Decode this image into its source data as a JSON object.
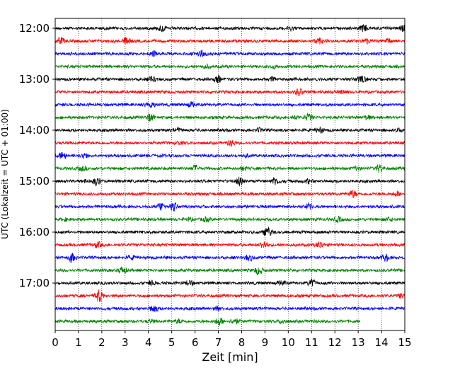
{
  "chart_data": {
    "type": "line",
    "subtype": "seismogram-helicorder",
    "xlabel": "Zeit  [min]",
    "ylabel": "UTC (Lokalzeit = UTC + 01:00)",
    "xlim": [
      0,
      15
    ],
    "x_ticks": [
      "0",
      "1",
      "2",
      "3",
      "4",
      "5",
      "6",
      "7",
      "8",
      "9",
      "10",
      "11",
      "12",
      "13",
      "14",
      "15"
    ],
    "y_tick_labels": [
      "12:00",
      "13:00",
      "14:00",
      "15:00",
      "16:00",
      "17:00"
    ],
    "grid": "vertical-dotted",
    "trace_minutes": 15,
    "trace_colors": [
      "#000000",
      "#ff0000",
      "#0000ff",
      "#008000"
    ],
    "traces": [
      {
        "start": "12:00",
        "end_min": 15
      },
      {
        "start": "12:15",
        "end_min": 15
      },
      {
        "start": "12:30",
        "end_min": 15
      },
      {
        "start": "12:45",
        "end_min": 15
      },
      {
        "start": "13:00",
        "end_min": 15
      },
      {
        "start": "13:15",
        "end_min": 15
      },
      {
        "start": "13:30",
        "end_min": 15
      },
      {
        "start": "13:45",
        "end_min": 15
      },
      {
        "start": "14:00",
        "end_min": 15
      },
      {
        "start": "14:15",
        "end_min": 15
      },
      {
        "start": "14:30",
        "end_min": 15
      },
      {
        "start": "14:45",
        "end_min": 15
      },
      {
        "start": "15:00",
        "end_min": 15
      },
      {
        "start": "15:15",
        "end_min": 15
      },
      {
        "start": "15:30",
        "end_min": 15
      },
      {
        "start": "15:45",
        "end_min": 15
      },
      {
        "start": "16:00",
        "end_min": 15
      },
      {
        "start": "16:15",
        "end_min": 15
      },
      {
        "start": "16:30",
        "end_min": 15
      },
      {
        "start": "16:45",
        "end_min": 15
      },
      {
        "start": "17:00",
        "end_min": 15
      },
      {
        "start": "17:15",
        "end_min": 15
      },
      {
        "start": "17:30",
        "end_min": 15
      },
      {
        "start": "17:45",
        "end_min": 13.1
      }
    ]
  }
}
